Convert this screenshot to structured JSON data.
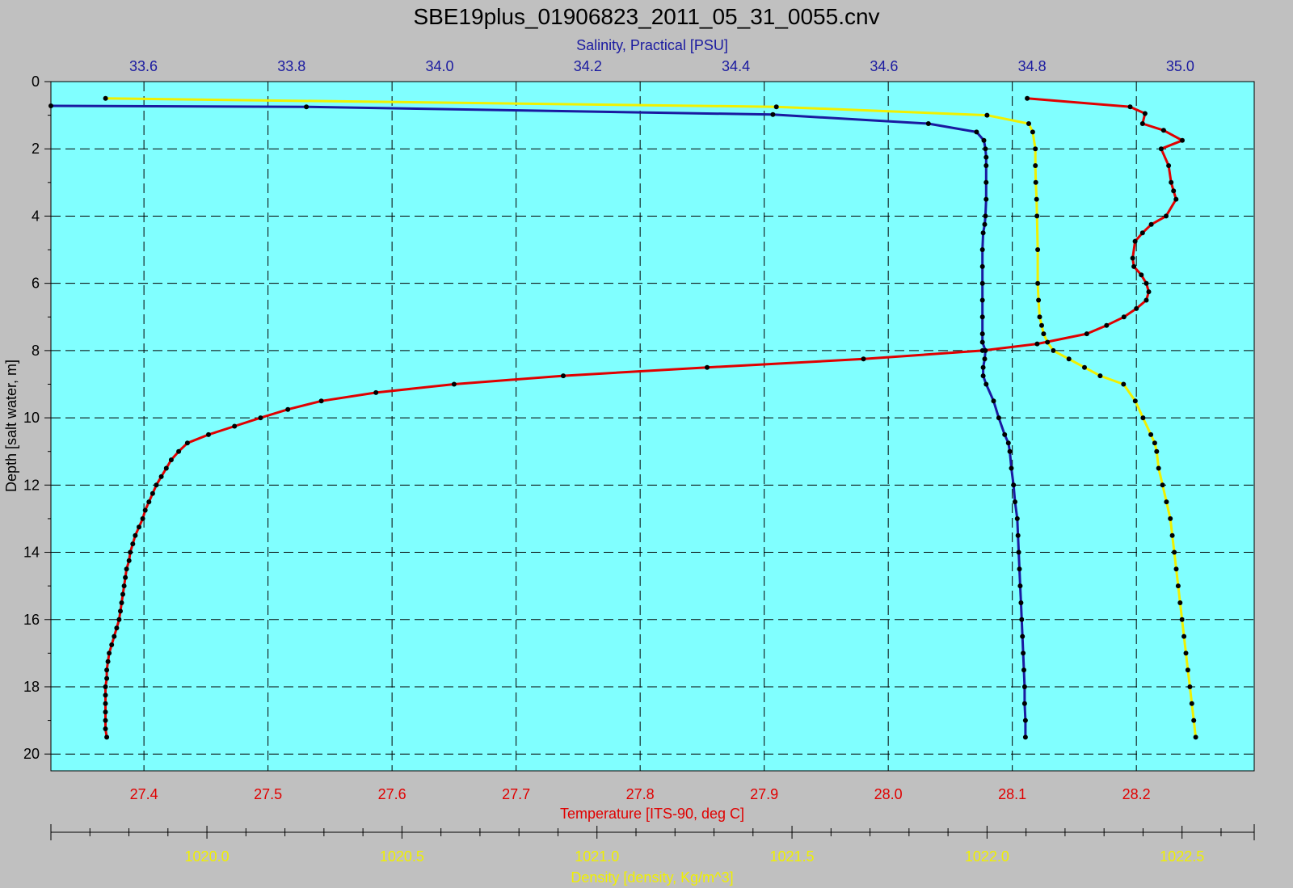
{
  "chart_data": {
    "type": "line",
    "title": "SBE19plus_01906823_2011_05_31_0055.cnv",
    "grid": true,
    "y_axis": {
      "label": "Depth [salt water, m]",
      "range": [
        0,
        20.5
      ],
      "ticks": [
        "0",
        "2",
        "4",
        "6",
        "8",
        "10",
        "12",
        "14",
        "16",
        "18",
        "20"
      ],
      "inverted": true
    },
    "axes": {
      "salinity": {
        "label": "Salinity, Practical [PSU]",
        "position": "top",
        "range": [
          33.475,
          35.1
        ],
        "ticks": [
          "33.6",
          "33.8",
          "34.0",
          "34.2",
          "34.4",
          "34.6",
          "34.8",
          "35.0"
        ],
        "color": "#1a1aa0"
      },
      "temperature": {
        "label": "Temperature [ITS-90, deg C]",
        "position": "bottom",
        "range": [
          27.325,
          28.295
        ],
        "ticks": [
          "27.4",
          "27.5",
          "27.6",
          "27.7",
          "27.8",
          "27.9",
          "28.0",
          "28.1",
          "28.2"
        ],
        "color": "#e00000"
      },
      "density": {
        "label": "Density [density, Kg/m^3]",
        "position": "bottom",
        "range": [
          1019.6,
          1022.685
        ],
        "ticks": [
          "1020.0",
          "1020.5",
          "1021.0",
          "1021.5",
          "1022.0",
          "1022.5"
        ],
        "color": "#f0f000"
      }
    },
    "series": [
      {
        "axis": "temperature",
        "color": "#e00000",
        "points": [
          [
            28.112,
            0.5
          ],
          [
            28.195,
            0.75
          ],
          [
            28.207,
            0.95
          ],
          [
            28.205,
            1.25
          ],
          [
            28.222,
            1.45
          ],
          [
            28.237,
            1.75
          ],
          [
            28.22,
            2.0
          ],
          [
            28.226,
            2.5
          ],
          [
            28.228,
            3.0
          ],
          [
            28.23,
            3.25
          ],
          [
            28.232,
            3.5
          ],
          [
            28.224,
            4.0
          ],
          [
            28.212,
            4.25
          ],
          [
            28.205,
            4.5
          ],
          [
            28.199,
            4.75
          ],
          [
            28.197,
            5.25
          ],
          [
            28.198,
            5.5
          ],
          [
            28.204,
            5.75
          ],
          [
            28.208,
            6.0
          ],
          [
            28.21,
            6.25
          ],
          [
            28.208,
            6.5
          ],
          [
            28.2,
            6.75
          ],
          [
            28.19,
            7.0
          ],
          [
            28.176,
            7.25
          ],
          [
            28.16,
            7.5
          ],
          [
            28.12,
            7.8
          ],
          [
            28.076,
            8.0
          ],
          [
            27.98,
            8.25
          ],
          [
            27.854,
            8.5
          ],
          [
            27.738,
            8.75
          ],
          [
            27.65,
            9.0
          ],
          [
            27.587,
            9.25
          ],
          [
            27.543,
            9.5
          ],
          [
            27.516,
            9.75
          ],
          [
            27.494,
            10.0
          ],
          [
            27.473,
            10.25
          ],
          [
            27.452,
            10.5
          ],
          [
            27.435,
            10.75
          ],
          [
            27.428,
            11.0
          ],
          [
            27.422,
            11.25
          ],
          [
            27.418,
            11.5
          ],
          [
            27.414,
            11.75
          ],
          [
            27.41,
            12.0
          ],
          [
            27.407,
            12.25
          ],
          [
            27.404,
            12.5
          ],
          [
            27.401,
            12.75
          ],
          [
            27.399,
            13.0
          ],
          [
            27.396,
            13.25
          ],
          [
            27.393,
            13.5
          ],
          [
            27.391,
            13.75
          ],
          [
            27.389,
            14.0
          ],
          [
            27.388,
            14.25
          ],
          [
            27.386,
            14.5
          ],
          [
            27.385,
            14.75
          ],
          [
            27.384,
            15.0
          ],
          [
            27.383,
            15.25
          ],
          [
            27.382,
            15.5
          ],
          [
            27.381,
            15.75
          ],
          [
            27.38,
            16.0
          ],
          [
            27.378,
            16.25
          ],
          [
            27.376,
            16.5
          ],
          [
            27.374,
            16.75
          ],
          [
            27.372,
            17.0
          ],
          [
            27.371,
            17.25
          ],
          [
            27.37,
            17.5
          ],
          [
            27.37,
            17.75
          ],
          [
            27.369,
            18.0
          ],
          [
            27.369,
            18.25
          ],
          [
            27.369,
            18.5
          ],
          [
            27.369,
            18.75
          ],
          [
            27.369,
            19.0
          ],
          [
            27.369,
            19.25
          ],
          [
            27.37,
            19.5
          ]
        ]
      },
      {
        "axis": "salinity",
        "color": "#1a1aa0",
        "points": [
          [
            33.475,
            0.72
          ],
          [
            33.82,
            0.75
          ],
          [
            34.45,
            0.98
          ],
          [
            34.66,
            1.25
          ],
          [
            34.725,
            1.5
          ],
          [
            34.735,
            1.75
          ],
          [
            34.737,
            2.0
          ],
          [
            34.738,
            2.25
          ],
          [
            34.738,
            2.5
          ],
          [
            34.738,
            3.0
          ],
          [
            34.738,
            3.5
          ],
          [
            34.737,
            4.0
          ],
          [
            34.736,
            4.25
          ],
          [
            34.734,
            4.5
          ],
          [
            34.733,
            5.0
          ],
          [
            34.733,
            5.5
          ],
          [
            34.733,
            6.0
          ],
          [
            34.733,
            6.5
          ],
          [
            34.733,
            7.0
          ],
          [
            34.733,
            7.5
          ],
          [
            34.733,
            7.75
          ],
          [
            34.737,
            8.0
          ],
          [
            34.736,
            8.25
          ],
          [
            34.734,
            8.5
          ],
          [
            34.734,
            8.75
          ],
          [
            34.738,
            9.0
          ],
          [
            34.748,
            9.5
          ],
          [
            34.755,
            10.0
          ],
          [
            34.763,
            10.5
          ],
          [
            34.768,
            10.75
          ],
          [
            34.77,
            11.0
          ],
          [
            34.772,
            11.5
          ],
          [
            34.775,
            12.0
          ],
          [
            34.777,
            12.5
          ],
          [
            34.78,
            13.0
          ],
          [
            34.781,
            13.5
          ],
          [
            34.782,
            14.0
          ],
          [
            34.783,
            14.5
          ],
          [
            34.784,
            15.0
          ],
          [
            34.785,
            15.5
          ],
          [
            34.786,
            16.0
          ],
          [
            34.787,
            16.5
          ],
          [
            34.788,
            17.0
          ],
          [
            34.789,
            17.5
          ],
          [
            34.79,
            18.0
          ],
          [
            34.79,
            18.5
          ],
          [
            34.791,
            19.0
          ],
          [
            34.791,
            19.5
          ]
        ]
      },
      {
        "axis": "density",
        "color": "#f0f000",
        "points": [
          [
            1019.74,
            0.5
          ],
          [
            1021.46,
            0.75
          ],
          [
            1022.0,
            1.0
          ],
          [
            1022.107,
            1.25
          ],
          [
            1022.117,
            1.5
          ],
          [
            1022.124,
            2.0
          ],
          [
            1022.124,
            2.5
          ],
          [
            1022.125,
            3.0
          ],
          [
            1022.127,
            3.5
          ],
          [
            1022.128,
            4.0
          ],
          [
            1022.13,
            5.0
          ],
          [
            1022.13,
            6.0
          ],
          [
            1022.132,
            6.5
          ],
          [
            1022.135,
            7.0
          ],
          [
            1022.14,
            7.25
          ],
          [
            1022.145,
            7.5
          ],
          [
            1022.155,
            7.75
          ],
          [
            1022.17,
            8.0
          ],
          [
            1022.21,
            8.25
          ],
          [
            1022.25,
            8.5
          ],
          [
            1022.29,
            8.75
          ],
          [
            1022.35,
            9.0
          ],
          [
            1022.38,
            9.5
          ],
          [
            1022.4,
            10.0
          ],
          [
            1022.42,
            10.5
          ],
          [
            1022.43,
            10.75
          ],
          [
            1022.435,
            11.0
          ],
          [
            1022.44,
            11.5
          ],
          [
            1022.45,
            12.0
          ],
          [
            1022.46,
            12.5
          ],
          [
            1022.47,
            13.0
          ],
          [
            1022.475,
            13.5
          ],
          [
            1022.48,
            14.0
          ],
          [
            1022.485,
            14.5
          ],
          [
            1022.49,
            15.0
          ],
          [
            1022.495,
            15.5
          ],
          [
            1022.5,
            16.0
          ],
          [
            1022.505,
            16.5
          ],
          [
            1022.51,
            17.0
          ],
          [
            1022.515,
            17.5
          ],
          [
            1022.52,
            18.0
          ],
          [
            1022.525,
            18.5
          ],
          [
            1022.53,
            19.0
          ],
          [
            1022.535,
            19.5
          ]
        ]
      }
    ]
  }
}
